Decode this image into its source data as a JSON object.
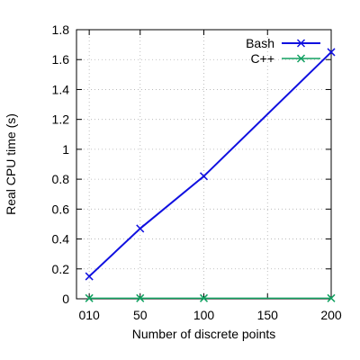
{
  "chart_data": {
    "type": "line",
    "xlabel": "Number of discrete points",
    "ylabel": "Real CPU time (s)",
    "xlim": [
      0,
      200
    ],
    "ylim": [
      0,
      1.8
    ],
    "grid": true,
    "legend_position": "top-right",
    "x_ticks": [
      {
        "value": 10,
        "label": "010"
      },
      {
        "value": 50,
        "label": "50"
      },
      {
        "value": 100,
        "label": "100"
      },
      {
        "value": 150,
        "label": "150"
      },
      {
        "value": 200,
        "label": "200"
      }
    ],
    "y_ticks": [
      {
        "value": 0,
        "label": "0"
      },
      {
        "value": 0.2,
        "label": "0.2"
      },
      {
        "value": 0.4,
        "label": "0.4"
      },
      {
        "value": 0.6,
        "label": "0.6"
      },
      {
        "value": 0.8,
        "label": "0.8"
      },
      {
        "value": 1.0,
        "label": "1"
      },
      {
        "value": 1.2,
        "label": "1.2"
      },
      {
        "value": 1.4,
        "label": "1.4"
      },
      {
        "value": 1.6,
        "label": "1.6"
      },
      {
        "value": 1.8,
        "label": "1.8"
      }
    ],
    "series": [
      {
        "name": "Bash",
        "color": "#1010e0",
        "marker": "x",
        "x": [
          10,
          50,
          100,
          200
        ],
        "y": [
          0.15,
          0.47,
          0.82,
          1.65
        ]
      },
      {
        "name": "C++",
        "color": "#10a060",
        "marker": "x",
        "x": [
          10,
          50,
          100,
          200
        ],
        "y": [
          0.004,
          0.004,
          0.004,
          0.004
        ]
      }
    ]
  }
}
